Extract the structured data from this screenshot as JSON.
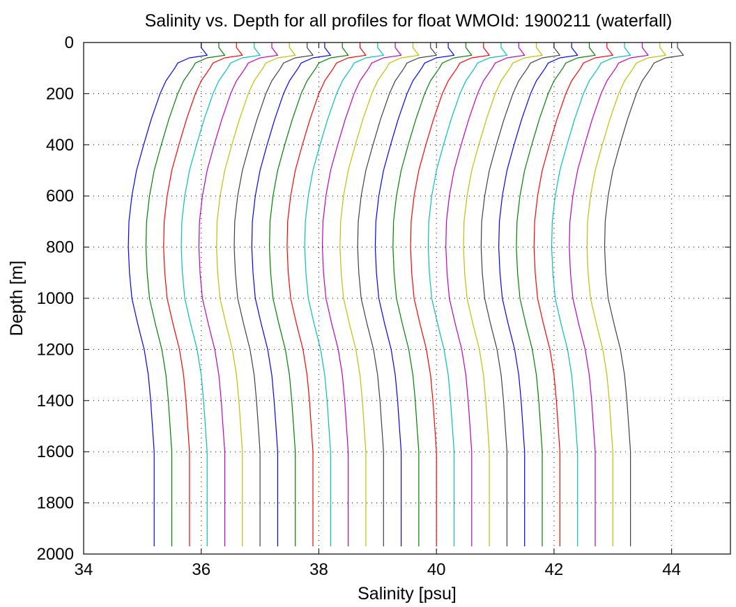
{
  "chart_data": {
    "type": "line",
    "title": "Salinity vs. Depth for all profiles for float WMOId: 1900211 (waterfall)",
    "xlabel": "Salinity [psu]",
    "ylabel": "Depth [m]",
    "xlim": [
      34,
      45
    ],
    "ylim": [
      0,
      2000
    ],
    "y_reversed": true,
    "grid": true,
    "legend": "none",
    "x_ticks": [
      34,
      36,
      38,
      40,
      42,
      44
    ],
    "y_ticks": [
      0,
      200,
      400,
      600,
      800,
      1000,
      1200,
      1400,
      1600,
      1800,
      2000
    ],
    "colors": [
      "#0000ff",
      "#008000",
      "#ff0000",
      "#00bfbf",
      "#bf00bf",
      "#bfbf00",
      "#404040"
    ],
    "depth_levels": [
      0,
      20,
      50,
      60,
      80,
      100,
      150,
      200,
      300,
      400,
      500,
      600,
      700,
      800,
      900,
      1000,
      1100,
      1200,
      1300,
      1400,
      1500,
      1600,
      1800,
      1970
    ],
    "series": [
      {
        "values": [
          36.0,
          36.0,
          36.1,
          35.8,
          35.6,
          35.55,
          35.4,
          35.3,
          35.15,
          35.02,
          34.9,
          34.82,
          34.77,
          34.76,
          34.78,
          34.82,
          34.92,
          35.03,
          35.1,
          35.14,
          35.17,
          35.2,
          35.2,
          35.2
        ]
      },
      {
        "values": [
          36.3,
          36.3,
          36.4,
          36.1,
          35.9,
          35.85,
          35.7,
          35.6,
          35.45,
          35.32,
          35.2,
          35.12,
          35.07,
          35.06,
          35.08,
          35.12,
          35.22,
          35.33,
          35.4,
          35.44,
          35.47,
          35.5,
          35.5,
          35.5
        ]
      },
      {
        "values": [
          36.6,
          36.6,
          36.7,
          36.4,
          36.2,
          36.15,
          36.0,
          35.9,
          35.75,
          35.62,
          35.5,
          35.42,
          35.37,
          35.36,
          35.38,
          35.42,
          35.52,
          35.63,
          35.7,
          35.74,
          35.77,
          35.8,
          35.8,
          35.8
        ]
      },
      {
        "values": [
          36.9,
          36.9,
          37.0,
          36.7,
          36.5,
          36.45,
          36.3,
          36.2,
          36.05,
          35.92,
          35.8,
          35.72,
          35.67,
          35.66,
          35.68,
          35.72,
          35.82,
          35.93,
          36.0,
          36.04,
          36.07,
          36.1,
          36.1,
          36.1
        ]
      },
      {
        "values": [
          37.2,
          37.2,
          37.3,
          37.0,
          36.8,
          36.75,
          36.6,
          36.5,
          36.35,
          36.22,
          36.1,
          36.02,
          35.97,
          35.96,
          35.98,
          36.02,
          36.12,
          36.23,
          36.3,
          36.34,
          36.37,
          36.4,
          36.4,
          36.4
        ]
      },
      {
        "values": [
          37.5,
          37.5,
          37.6,
          37.3,
          37.1,
          37.05,
          36.9,
          36.8,
          36.65,
          36.52,
          36.4,
          36.32,
          36.27,
          36.26,
          36.28,
          36.32,
          36.42,
          36.53,
          36.6,
          36.64,
          36.67,
          36.7,
          36.7,
          36.7
        ]
      },
      {
        "values": [
          37.8,
          37.8,
          37.9,
          37.6,
          37.4,
          37.35,
          37.2,
          37.1,
          36.95,
          36.82,
          36.7,
          36.62,
          36.57,
          36.56,
          36.58,
          36.62,
          36.72,
          36.83,
          36.9,
          36.94,
          36.97,
          37.0,
          37.0,
          37.0
        ]
      },
      {
        "values": [
          38.1,
          38.1,
          38.2,
          37.9,
          37.7,
          37.65,
          37.5,
          37.4,
          37.25,
          37.12,
          37.0,
          36.92,
          36.87,
          36.86,
          36.88,
          36.92,
          37.02,
          37.13,
          37.2,
          37.24,
          37.27,
          37.3,
          37.3,
          37.3
        ]
      },
      {
        "values": [
          38.4,
          38.4,
          38.5,
          38.2,
          38.0,
          37.95,
          37.8,
          37.7,
          37.55,
          37.42,
          37.3,
          37.22,
          37.17,
          37.16,
          37.18,
          37.22,
          37.32,
          37.43,
          37.5,
          37.54,
          37.57,
          37.6,
          37.6,
          37.6
        ]
      },
      {
        "values": [
          38.7,
          38.7,
          38.8,
          38.5,
          38.3,
          38.25,
          38.1,
          38.0,
          37.85,
          37.72,
          37.6,
          37.52,
          37.47,
          37.46,
          37.48,
          37.52,
          37.62,
          37.73,
          37.8,
          37.84,
          37.87,
          37.9,
          37.9,
          37.9
        ]
      },
      {
        "values": [
          39.0,
          39.0,
          39.1,
          38.8,
          38.6,
          38.55,
          38.4,
          38.3,
          38.15,
          38.02,
          37.9,
          37.82,
          37.77,
          37.76,
          37.78,
          37.82,
          37.92,
          38.03,
          38.1,
          38.14,
          38.17,
          38.2,
          38.2,
          38.2
        ]
      },
      {
        "values": [
          39.3,
          39.3,
          39.4,
          39.1,
          38.9,
          38.85,
          38.7,
          38.6,
          38.45,
          38.32,
          38.2,
          38.12,
          38.07,
          38.06,
          38.08,
          38.12,
          38.22,
          38.33,
          38.4,
          38.44,
          38.47,
          38.5,
          38.5,
          38.5
        ]
      },
      {
        "values": [
          39.6,
          39.6,
          39.7,
          39.4,
          39.2,
          39.15,
          39.0,
          38.9,
          38.75,
          38.62,
          38.5,
          38.42,
          38.37,
          38.36,
          38.38,
          38.42,
          38.52,
          38.63,
          38.7,
          38.74,
          38.77,
          38.8,
          38.8,
          38.8
        ]
      },
      {
        "values": [
          39.9,
          39.9,
          40.0,
          39.7,
          39.5,
          39.45,
          39.3,
          39.2,
          39.05,
          38.92,
          38.8,
          38.72,
          38.67,
          38.66,
          38.68,
          38.72,
          38.82,
          38.93,
          39.0,
          39.04,
          39.07,
          39.1,
          39.1,
          39.1
        ]
      },
      {
        "values": [
          40.2,
          40.2,
          40.3,
          40.0,
          39.8,
          39.75,
          39.6,
          39.5,
          39.35,
          39.22,
          39.1,
          39.02,
          38.97,
          38.96,
          38.98,
          39.02,
          39.12,
          39.23,
          39.3,
          39.34,
          39.37,
          39.4,
          39.4,
          39.4
        ]
      },
      {
        "values": [
          40.5,
          40.5,
          40.6,
          40.3,
          40.1,
          40.05,
          39.9,
          39.8,
          39.65,
          39.52,
          39.4,
          39.32,
          39.27,
          39.26,
          39.28,
          39.32,
          39.42,
          39.53,
          39.6,
          39.64,
          39.67,
          39.7,
          39.7,
          39.7
        ]
      },
      {
        "values": [
          40.8,
          40.8,
          40.9,
          40.6,
          40.4,
          40.35,
          40.2,
          40.1,
          39.95,
          39.82,
          39.7,
          39.62,
          39.57,
          39.56,
          39.58,
          39.62,
          39.72,
          39.83,
          39.9,
          39.94,
          39.97,
          40.0,
          40.0,
          40.0
        ]
      },
      {
        "values": [
          41.1,
          41.1,
          41.2,
          40.9,
          40.7,
          40.65,
          40.5,
          40.4,
          40.25,
          40.12,
          40.0,
          39.92,
          39.87,
          39.86,
          39.88,
          39.92,
          40.02,
          40.13,
          40.2,
          40.24,
          40.27,
          40.3,
          40.3,
          40.3
        ]
      },
      {
        "values": [
          41.4,
          41.4,
          41.5,
          41.2,
          41.0,
          40.95,
          40.8,
          40.7,
          40.55,
          40.42,
          40.3,
          40.22,
          40.17,
          40.16,
          40.18,
          40.22,
          40.32,
          40.43,
          40.5,
          40.54,
          40.57,
          40.6,
          40.6,
          40.6
        ]
      },
      {
        "values": [
          41.7,
          41.7,
          41.8,
          41.5,
          41.3,
          41.25,
          41.1,
          41.0,
          40.85,
          40.72,
          40.6,
          40.52,
          40.47,
          40.46,
          40.48,
          40.52,
          40.62,
          40.73,
          40.8,
          40.84,
          40.87,
          40.9,
          40.9,
          40.9
        ]
      },
      {
        "values": [
          42.0,
          42.0,
          42.1,
          41.8,
          41.6,
          41.55,
          41.4,
          41.3,
          41.15,
          41.02,
          40.9,
          40.82,
          40.77,
          40.76,
          40.78,
          40.82,
          40.92,
          41.03,
          41.1,
          41.14,
          41.17,
          41.2,
          41.2,
          41.2
        ]
      },
      {
        "values": [
          42.3,
          42.3,
          42.4,
          42.1,
          41.9,
          41.85,
          41.7,
          41.6,
          41.45,
          41.32,
          41.2,
          41.12,
          41.07,
          41.06,
          41.08,
          41.12,
          41.22,
          41.33,
          41.4,
          41.44,
          41.47,
          41.5,
          41.5,
          41.5
        ]
      },
      {
        "values": [
          42.6,
          42.6,
          42.7,
          42.4,
          42.2,
          42.15,
          42.0,
          41.9,
          41.75,
          41.62,
          41.5,
          41.42,
          41.37,
          41.36,
          41.38,
          41.42,
          41.52,
          41.63,
          41.7,
          41.74,
          41.77,
          41.8,
          41.8,
          41.8
        ]
      },
      {
        "values": [
          42.9,
          42.9,
          43.0,
          42.7,
          42.5,
          42.45,
          42.3,
          42.2,
          42.05,
          41.92,
          41.8,
          41.72,
          41.67,
          41.66,
          41.68,
          41.72,
          41.82,
          41.93,
          42.0,
          42.04,
          42.07,
          42.1,
          42.1,
          42.1
        ]
      },
      {
        "values": [
          43.2,
          43.2,
          43.3,
          43.0,
          42.8,
          42.75,
          42.6,
          42.5,
          42.35,
          42.22,
          42.1,
          42.02,
          41.97,
          41.96,
          41.98,
          42.02,
          42.12,
          42.23,
          42.3,
          42.34,
          42.37,
          42.4,
          42.4,
          42.4
        ]
      },
      {
        "values": [
          43.5,
          43.5,
          43.6,
          43.3,
          43.1,
          43.05,
          42.9,
          42.8,
          42.65,
          42.52,
          42.4,
          42.32,
          42.27,
          42.26,
          42.28,
          42.32,
          42.42,
          42.53,
          42.6,
          42.64,
          42.67,
          42.7,
          42.7,
          42.7
        ]
      },
      {
        "values": [
          43.8,
          43.8,
          43.9,
          43.6,
          43.4,
          43.35,
          43.2,
          43.1,
          42.95,
          42.82,
          42.7,
          42.62,
          42.57,
          42.56,
          42.58,
          42.62,
          42.72,
          42.83,
          42.9,
          42.94,
          42.97,
          43.0,
          43.0,
          43.0
        ]
      },
      {
        "values": [
          44.1,
          44.1,
          44.2,
          43.9,
          43.7,
          43.65,
          43.5,
          43.4,
          43.25,
          43.12,
          43.0,
          42.92,
          42.87,
          42.86,
          42.88,
          42.92,
          43.02,
          43.13,
          43.2,
          43.24,
          43.27,
          43.3,
          43.3,
          43.3
        ]
      }
    ]
  }
}
